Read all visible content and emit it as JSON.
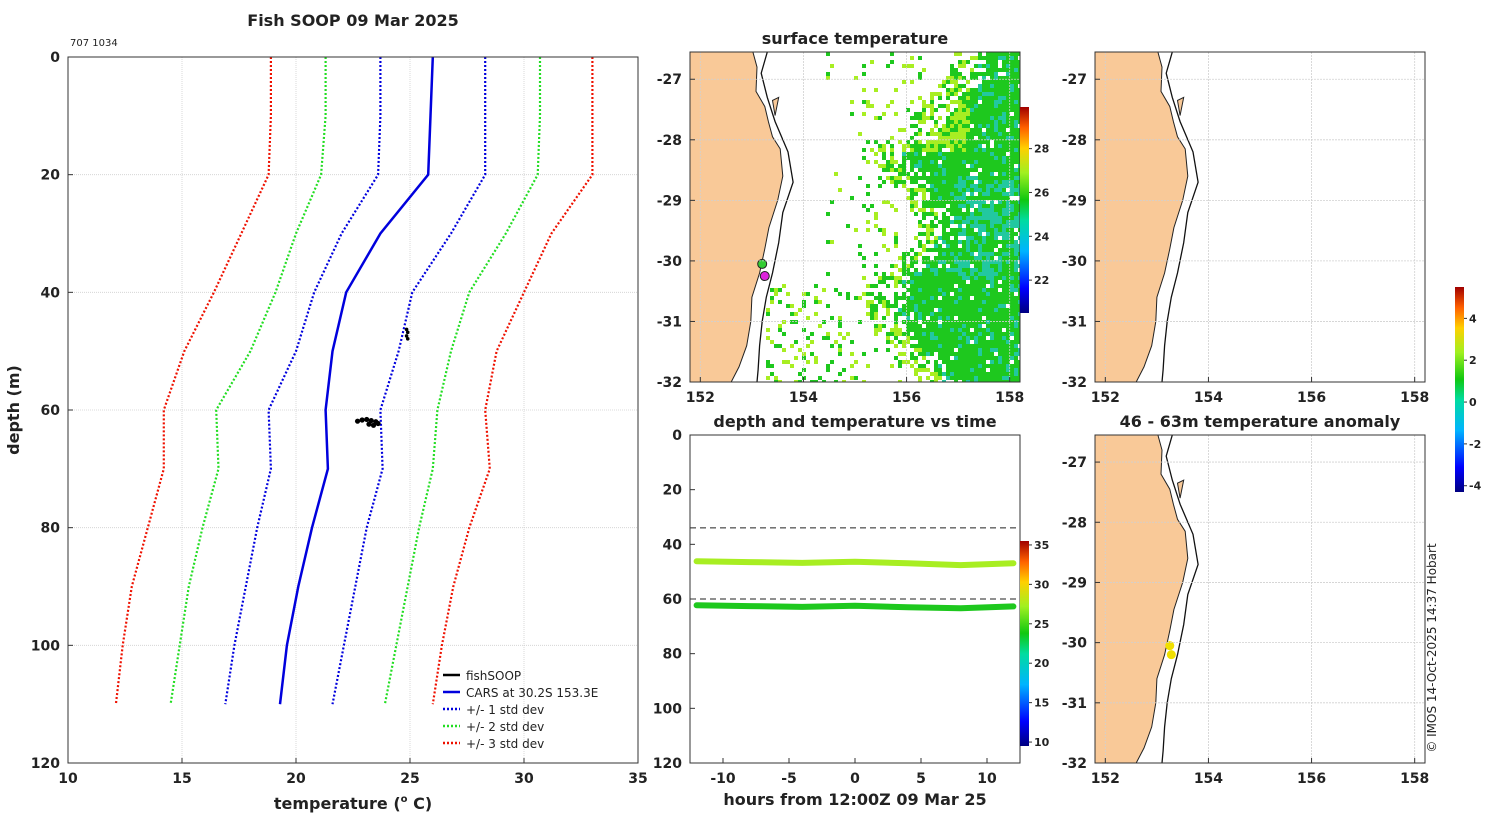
{
  "figure_title": "Fish SOOP 09 Mar 2025",
  "device_id": "707 1034",
  "copyright": "© IMOS 14-Oct-2025 14:37 Hobart",
  "colors": {
    "cars": "#0000dd",
    "std1": "#0000dd",
    "std2": "#22dd22",
    "std3": "#ee1100",
    "fish": "#000000",
    "land": "#f9c998",
    "sst_cyan": "#22c8a0",
    "sst_green": "#1ec81e",
    "sst_lime": "#a8ee22",
    "anomaly_point": "#f0e000",
    "dot_magenta": "#dd22dd",
    "dot_green": "#33cc33"
  },
  "chart_data": [
    {
      "id": "profile",
      "type": "line",
      "title": "Fish SOOP 09 Mar 2025",
      "xlabel": "temperature (",
      "xlabel_sup": "o",
      "xlabel_tail": " C)",
      "ylabel": "depth (m)",
      "xlim": [
        10,
        35
      ],
      "ylim": [
        0,
        120
      ],
      "y_inverted": true,
      "grid": true,
      "xticks": [
        10,
        15,
        20,
        25,
        30,
        35
      ],
      "yticks": [
        0,
        20,
        40,
        60,
        80,
        100,
        120
      ],
      "legend_position": "bottom-right",
      "legend": [
        "fishSOOP",
        "CARS at 30.2S 153.3E",
        "+/- 1 std dev",
        "+/- 2 std dev",
        "+/- 3 std dev"
      ],
      "depth": [
        0,
        10,
        20,
        30,
        40,
        50,
        60,
        70,
        80,
        90,
        100,
        110
      ],
      "cars_mean": [
        26.0,
        25.9,
        25.8,
        23.7,
        22.2,
        21.6,
        21.3,
        21.4,
        20.7,
        20.1,
        19.6,
        19.3
      ],
      "std1_left": [
        23.7,
        23.7,
        23.6,
        22.0,
        20.8,
        20.0,
        18.8,
        18.9,
        18.3,
        17.8,
        17.3,
        16.9
      ],
      "std1_right": [
        28.3,
        28.3,
        28.3,
        26.8,
        25.1,
        24.5,
        23.7,
        23.8,
        23.1,
        22.6,
        22.1,
        21.6
      ],
      "std2_left": [
        21.3,
        21.3,
        21.1,
        20.0,
        19.1,
        18.0,
        16.5,
        16.6,
        15.9,
        15.3,
        14.9,
        14.5
      ],
      "std2_right": [
        30.7,
        30.7,
        30.6,
        29.2,
        27.6,
        26.8,
        26.2,
        26.0,
        25.4,
        24.9,
        24.4,
        23.9
      ],
      "std3_left": [
        18.9,
        18.9,
        18.8,
        17.6,
        16.4,
        15.1,
        14.2,
        14.2,
        13.5,
        12.8,
        12.4,
        12.1
      ],
      "std3_right": [
        33.0,
        33.0,
        33.0,
        31.2,
        30.0,
        28.8,
        28.3,
        28.5,
        27.6,
        26.9,
        26.4,
        26.0
      ],
      "fish_shallow": {
        "temperature": [
          24.85,
          24.9,
          24.85,
          24.9
        ],
        "depth": [
          46.3,
          46.8,
          47.4,
          47.9
        ]
      },
      "fish_deep": {
        "temperature": [
          22.7,
          22.9,
          23.1,
          23.3,
          23.5,
          23.6,
          23.4,
          23.2
        ],
        "depth": [
          61.9,
          61.7,
          61.6,
          61.8,
          62.0,
          62.3,
          62.6,
          62.4
        ]
      }
    },
    {
      "id": "sst_map",
      "type": "heatmap",
      "title": "surface temperature",
      "xlim": [
        151.8,
        158.2
      ],
      "ylim": [
        -32,
        -26.55
      ],
      "xticks": [
        152,
        154,
        156,
        158
      ],
      "yticks": [
        -27,
        -28,
        -29,
        -30,
        -31,
        -32
      ],
      "colorbar": {
        "min": 20.5,
        "max": 29.9,
        "ticks": [
          22,
          24,
          26,
          28
        ]
      },
      "points": [
        {
          "lon": 153.2,
          "lat": -30.05,
          "color_key": "dot_green"
        },
        {
          "lon": 153.25,
          "lat": -30.25,
          "color_key": "dot_magenta"
        }
      ]
    },
    {
      "id": "time_series",
      "type": "scatter",
      "title": "depth and temperature vs time",
      "xlabel": "hours from 12:00Z 09 Mar 25",
      "xlim": [
        -12.5,
        12.5
      ],
      "ylim": [
        0,
        120
      ],
      "y_inverted": true,
      "xticks": [
        -10,
        -5,
        0,
        5,
        10
      ],
      "yticks": [
        0,
        20,
        40,
        60,
        80,
        100,
        120
      ],
      "dashed_depths": [
        34,
        60
      ],
      "colorbar": {
        "min": 9.5,
        "max": 35.5,
        "ticks": [
          10,
          15,
          20,
          25,
          30,
          35
        ]
      },
      "series": [
        {
          "name": "shallow",
          "color_key": "sst_lime",
          "hours": [
            -12,
            -8,
            -4,
            0,
            4,
            8,
            12
          ],
          "depth": [
            46.2,
            46.5,
            46.8,
            46.4,
            46.9,
            47.6,
            46.9
          ]
        },
        {
          "name": "deep",
          "color_key": "sst_green",
          "hours": [
            -12,
            -8,
            -4,
            0,
            4,
            8,
            12
          ],
          "depth": [
            62.3,
            62.6,
            62.9,
            62.5,
            63.0,
            63.4,
            62.7
          ]
        }
      ]
    },
    {
      "id": "empty_map",
      "type": "map",
      "title": "",
      "xlim": [
        151.8,
        158.2
      ],
      "ylim": [
        -32,
        -26.55
      ],
      "xticks": [
        152,
        154,
        156,
        158
      ],
      "yticks": [
        -27,
        -28,
        -29,
        -30,
        -31,
        -32
      ]
    },
    {
      "id": "anomaly_map",
      "type": "map",
      "title": "46 - 63m temperature anomaly",
      "xlim": [
        151.8,
        158.2
      ],
      "ylim": [
        -32,
        -26.55
      ],
      "xticks": [
        152,
        154,
        156,
        158
      ],
      "yticks": [
        -27,
        -28,
        -29,
        -30,
        -31,
        -32
      ],
      "colorbar": {
        "min": -4.3,
        "max": 5.5,
        "ticks": [
          -4,
          -2,
          0,
          2,
          4
        ]
      },
      "points": [
        {
          "lon": 153.25,
          "lat": -30.05,
          "color_key": "anomaly_point"
        },
        {
          "lon": 153.28,
          "lat": -30.2,
          "color_key": "anomaly_point"
        }
      ]
    }
  ]
}
